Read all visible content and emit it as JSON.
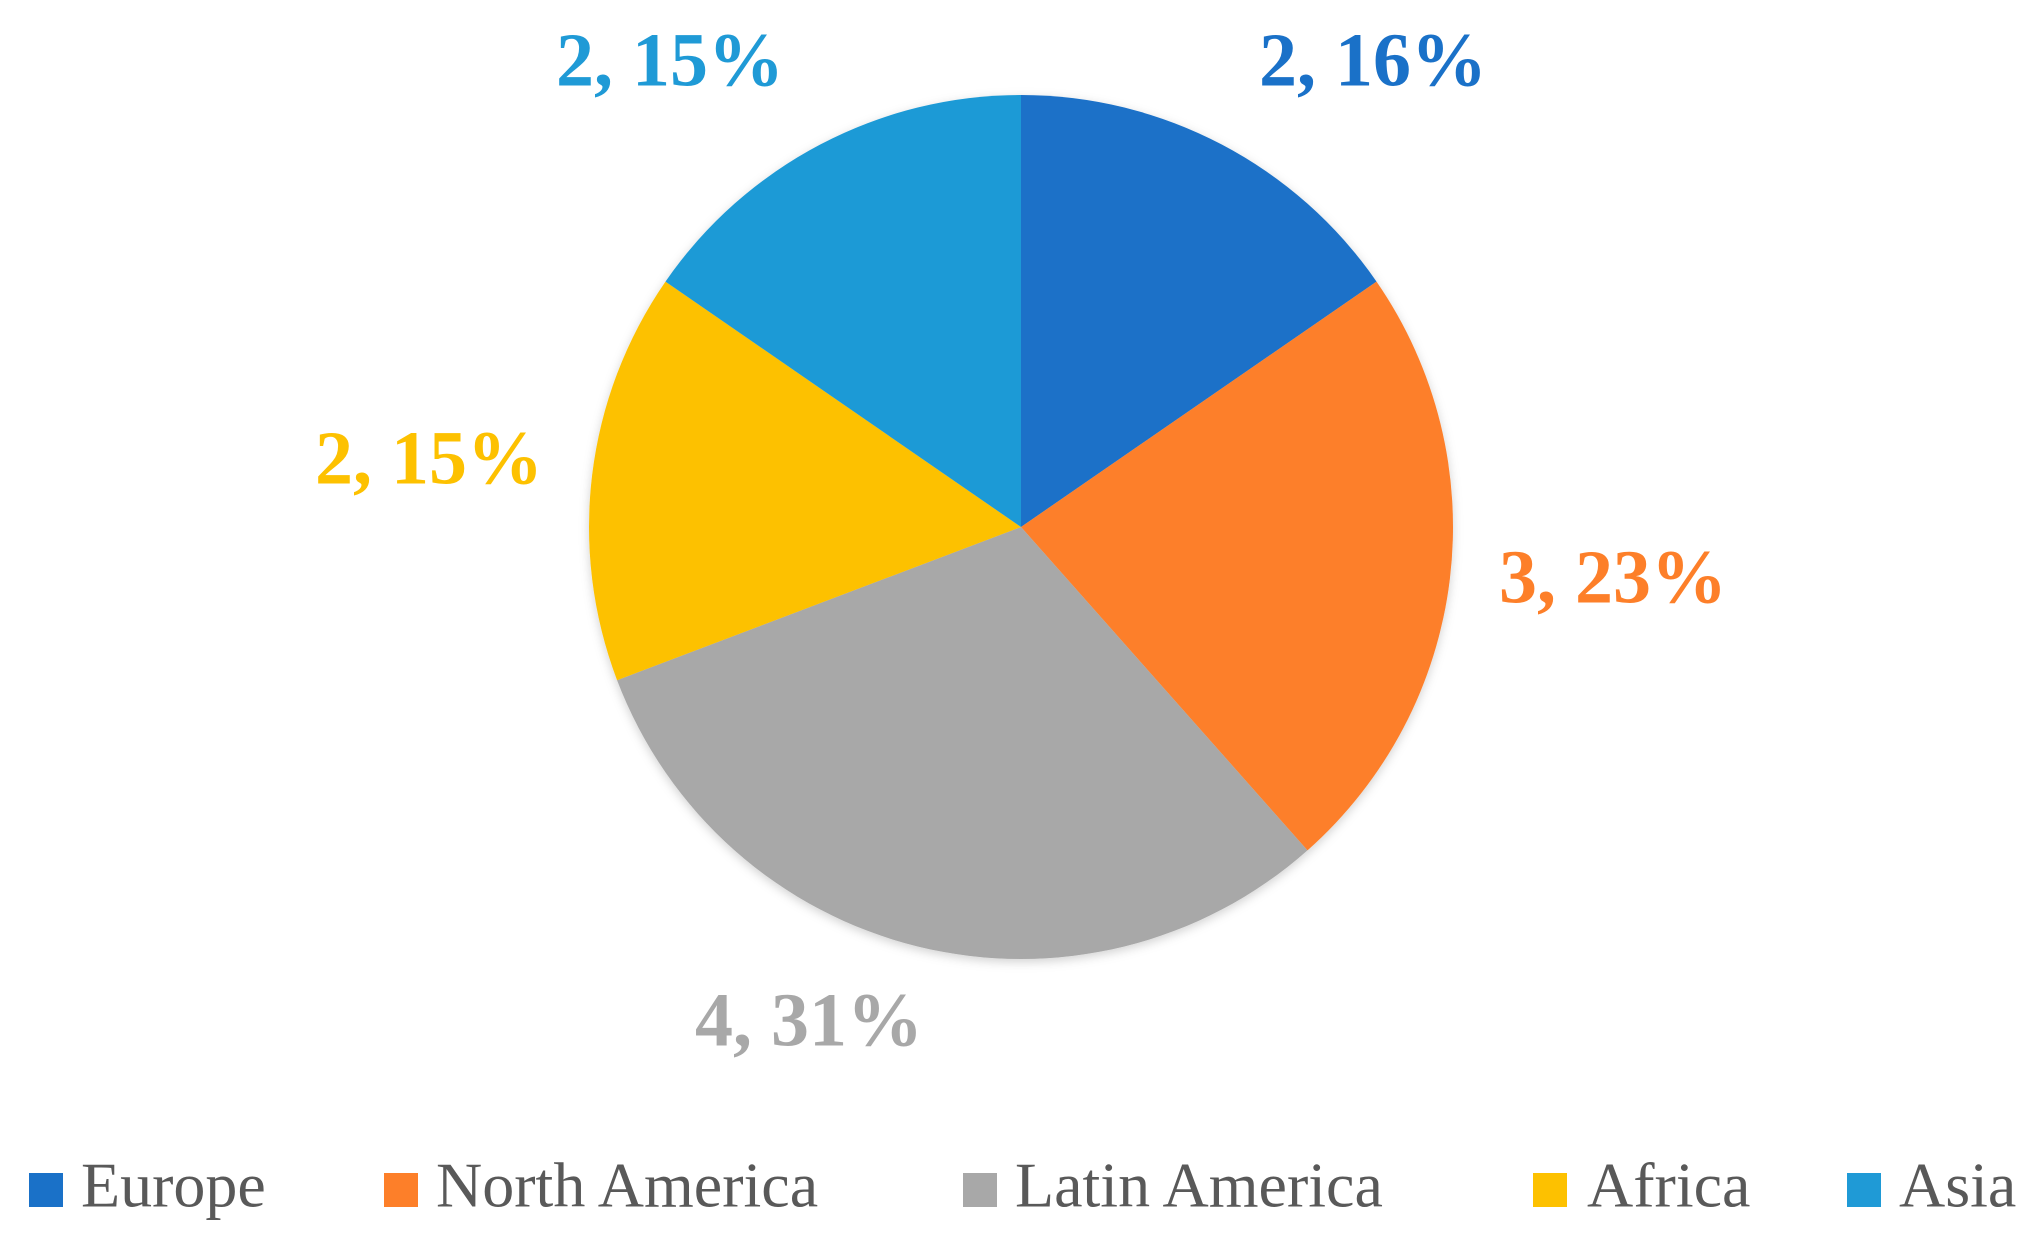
{
  "chart_data": {
    "type": "pie",
    "categories": [
      "Europe",
      "North America",
      "Latin America",
      "Africa",
      "Asia"
    ],
    "values": [
      2,
      3,
      4,
      2,
      2
    ],
    "value_labels": [
      "2, 16%",
      "3, 23%",
      "4, 31%",
      "2, 15%",
      "2, 15%"
    ],
    "colors": [
      "#1a71c8",
      "#fd7f29",
      "#a8a8a8",
      "#fdc100",
      "#1f9ad6"
    ],
    "legend": "bottom"
  }
}
